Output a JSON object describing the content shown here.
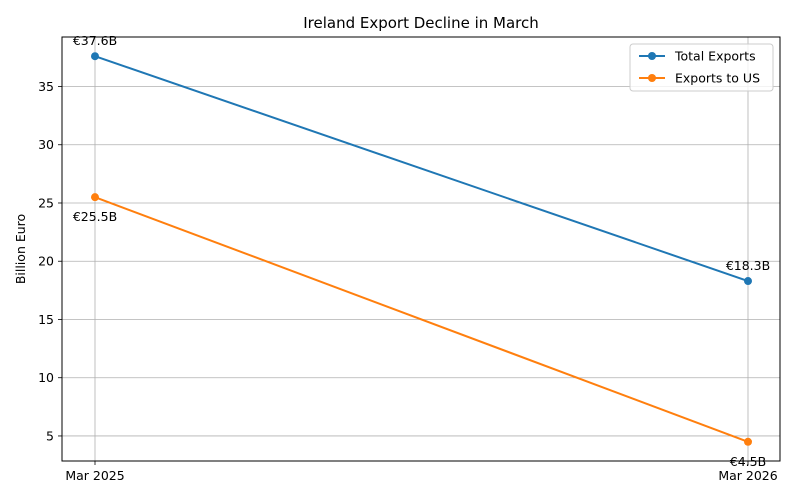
{
  "chart_data": {
    "type": "line",
    "title": "Ireland Export Decline in March",
    "xlabel": "",
    "ylabel": "Billion Euro",
    "categories": [
      "Mar 2025",
      "Mar 2026"
    ],
    "series": [
      {
        "name": "Total Exports",
        "values": [
          37.6,
          18.3
        ],
        "labels": [
          "€37.6B",
          "€18.3B"
        ],
        "label_side": "above",
        "color": "#1f77b4"
      },
      {
        "name": "Exports to US",
        "values": [
          25.5,
          4.5
        ],
        "labels": [
          "€25.5B",
          "€4.5B"
        ],
        "label_side": "below",
        "color": "#ff7f0e"
      }
    ],
    "ylim": [
      2.85,
      39.25
    ],
    "yticks": [
      5,
      10,
      15,
      20,
      25,
      30,
      35
    ],
    "grid": true,
    "legend_position": "top-right"
  }
}
